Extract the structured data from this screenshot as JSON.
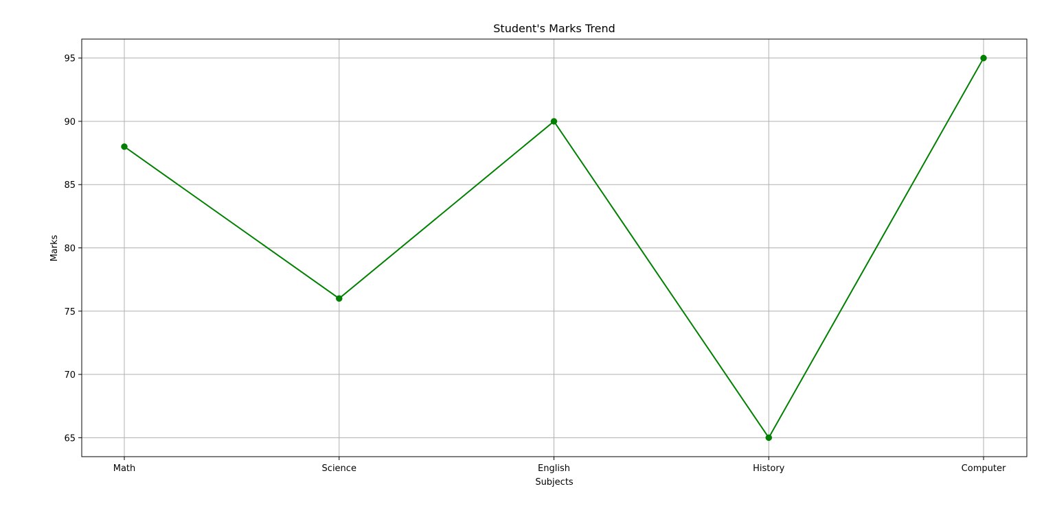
{
  "chart_data": {
    "type": "line",
    "title": "Student's Marks Trend",
    "xlabel": "Subjects",
    "ylabel": "Marks",
    "categories": [
      "Math",
      "Science",
      "English",
      "History",
      "Computer"
    ],
    "series": [
      {
        "values": [
          88,
          76,
          90,
          65,
          95
        ],
        "color": "#008000",
        "marker": "circle"
      }
    ],
    "ylim": [
      63.5,
      96.5
    ],
    "yticks": [
      65,
      70,
      75,
      80,
      85,
      90,
      95
    ],
    "grid": true,
    "legend": "none"
  }
}
